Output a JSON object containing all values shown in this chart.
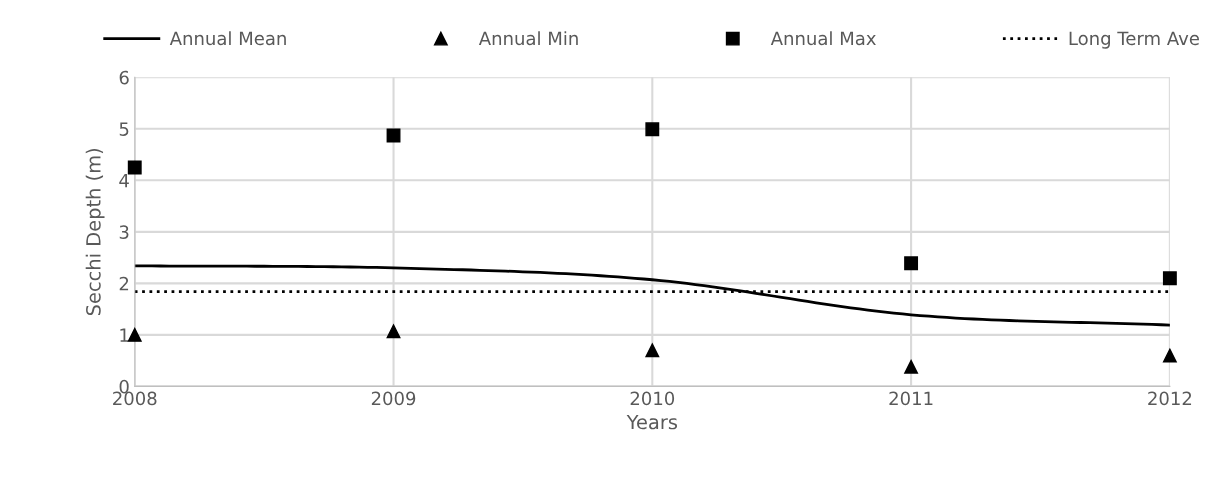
{
  "chart_data": {
    "type": "line",
    "xlabel": "Years",
    "ylabel": "Secchi Depth (m)",
    "x": [
      2008,
      2009,
      2010,
      2011,
      2012
    ],
    "xlim": [
      2008,
      2012
    ],
    "xticks": [
      2008,
      2009,
      2010,
      2011,
      2012
    ],
    "ylim": [
      0,
      6
    ],
    "yticks": [
      0,
      1,
      2,
      3,
      4,
      5,
      6
    ],
    "grid": true,
    "legend": "top",
    "series": [
      {
        "name": "Annual Mean",
        "color": "#000000",
        "marker": "none",
        "line_style": "solid",
        "values": [
          2.34,
          2.3,
          2.07,
          1.39,
          1.19
        ]
      },
      {
        "name": "Annual Min",
        "type": "scatter",
        "color": "#000000",
        "marker": "triangle",
        "values": [
          1.0,
          1.07,
          0.7,
          0.38,
          0.6
        ]
      },
      {
        "name": "Annual Max",
        "type": "scatter",
        "color": "#000000",
        "marker": "square",
        "values": [
          4.25,
          4.87,
          4.99,
          2.39,
          2.1
        ]
      }
    ],
    "ref_lines": [
      {
        "axis": "y",
        "value": 1.84,
        "label": "Long Term Ave",
        "color": "#000000",
        "line_style": "dotted"
      }
    ]
  }
}
